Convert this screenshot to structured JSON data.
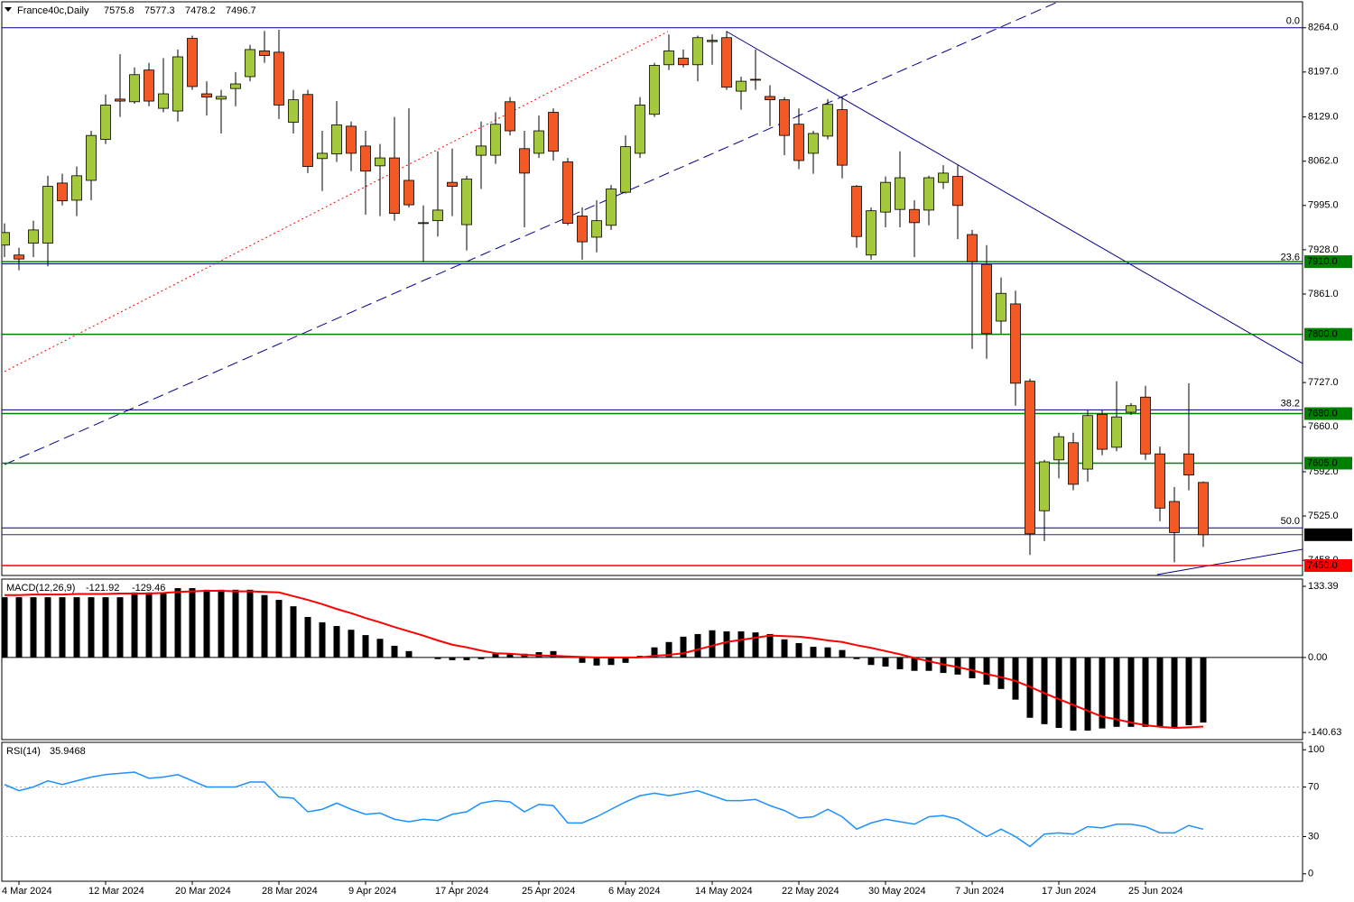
{
  "chart_data": [
    {
      "type": "candlestick",
      "title": "France40c,Daily",
      "categories": [
        null,
        "4 Mar 2024",
        null,
        null,
        null,
        null,
        null,
        "12 Mar 2024",
        null,
        null,
        null,
        null,
        null,
        "20 Mar 2024",
        null,
        null,
        null,
        null,
        null,
        "28 Mar 2024",
        null,
        null,
        null,
        null,
        null,
        "9 Apr 2024",
        null,
        null,
        null,
        null,
        null,
        "17 Apr 2024",
        null,
        null,
        null,
        null,
        null,
        "25 Apr 2024",
        null,
        null,
        null,
        null,
        null,
        "6 May 2024",
        null,
        null,
        null,
        null,
        null,
        "14 May 2024",
        null,
        null,
        null,
        null,
        null,
        "22 May 2024",
        null,
        null,
        null,
        null,
        null,
        "30 May 2024",
        null,
        null,
        null,
        null,
        null,
        "7 Jun 2024",
        null,
        null,
        null,
        null,
        null,
        "17 Jun 2024",
        null,
        null,
        null,
        null,
        null,
        "25 Jun 2024",
        null,
        null,
        null,
        null
      ],
      "open": [
        7935,
        7920,
        7938,
        7938,
        8029,
        8003,
        8033,
        8095,
        8156,
        8152,
        8200,
        8142,
        8138,
        8248,
        8164,
        8156,
        8172,
        8190,
        8229,
        8227,
        8121,
        8163,
        8066,
        8073,
        8115,
        8085,
        8055,
        8067,
        8033,
        7968,
        7972,
        8030,
        7966,
        8071,
        8071,
        8152,
        8081,
        8074,
        8136,
        8061,
        7979,
        7947,
        7965,
        8015,
        8074,
        8133,
        8208,
        8218,
        8208,
        8245,
        8249,
        8168,
        8186,
        8160,
        8155,
        8118,
        8074,
        8100,
        8140,
        8024,
        7920,
        7985,
        7989,
        7989,
        7988,
        8030,
        8039,
        7951,
        7906,
        7820,
        7846,
        7729,
        7533,
        7610,
        7636,
        7596,
        7679,
        7629,
        7682,
        7705,
        7619,
        7547,
        7619,
        7575.8
      ],
      "high": [
        7968,
        7931,
        7972,
        8040,
        8043,
        8054,
        8108,
        8163,
        8224,
        8204,
        8211,
        8218,
        8231,
        8252,
        8183,
        8170,
        8197,
        8238,
        8259,
        8261,
        8170,
        8170,
        8108,
        8153,
        8122,
        8108,
        8088,
        8129,
        8142,
        7995,
        8077,
        8081,
        8040,
        8122,
        8136,
        8159,
        8108,
        8131,
        8142,
        8067,
        7992,
        8003,
        8026,
        8101,
        8159,
        8211,
        8254,
        8231,
        8252,
        8254,
        8259,
        8190,
        8231,
        8177,
        8159,
        8142,
        8108,
        8156,
        8160,
        8026,
        7992,
        8039,
        8077,
        8003,
        8040,
        8056,
        8056,
        7958,
        7935,
        7886,
        7866,
        7733,
        7610,
        7651,
        7651,
        7685,
        7685,
        7729,
        7696,
        7722,
        7630,
        7569,
        7726,
        7577.3
      ],
      "low": [
        7917,
        7897,
        7917,
        7903,
        7995,
        7979,
        8003,
        8088,
        8129,
        8149,
        8145,
        8136,
        8122,
        8170,
        8131,
        8104,
        8145,
        8183,
        8211,
        8126,
        8104,
        8044,
        8017,
        8061,
        8047,
        7981,
        7979,
        7972,
        7992,
        7910,
        7948,
        7979,
        7927,
        8020,
        8058,
        8101,
        7962,
        8067,
        8063,
        7965,
        7913,
        7924,
        7958,
        8013,
        8067,
        8129,
        8200,
        8204,
        8183,
        8208,
        8170,
        8140,
        8170,
        8115,
        8071,
        8050,
        8043,
        8095,
        8036,
        7931,
        7913,
        7962,
        7962,
        7917,
        7965,
        8020,
        7944,
        7778,
        7763,
        7801,
        7692,
        7466,
        7487,
        7582,
        7564,
        7577,
        7617,
        7623,
        7678,
        7610,
        7517,
        7455,
        7564,
        7478.2
      ],
      "close": [
        7954,
        7914,
        7958,
        8024,
        8002,
        8040,
        8101,
        8147,
        8153,
        8193,
        8153,
        8164,
        8220,
        8175,
        8159,
        8160,
        8179,
        8231,
        8222,
        8147,
        8155,
        8054,
        8074,
        8117,
        8074,
        8047,
        8067,
        7983,
        7996,
        7969,
        7988,
        8024,
        8035,
        8085,
        8118,
        8108,
        8044,
        8108,
        8077,
        7968,
        7940,
        7972,
        8020,
        8084,
        8147,
        8207,
        8229,
        8208,
        8249,
        8243,
        8174,
        8183,
        8185,
        8155,
        8101,
        8063,
        8104,
        8148,
        8056,
        7948,
        7987,
        8030,
        8037,
        7969,
        8037,
        8044,
        7995,
        7910,
        7801,
        7862,
        7726,
        7498,
        7607,
        7645,
        7573,
        7677,
        7626,
        7675,
        7692,
        7619,
        7537,
        7500,
        7587,
        7496.7
      ],
      "up_color": "#a6c83c",
      "down_color": "#f15a24",
      "ylim": [
        7435,
        8306
      ],
      "yticks": [
        {
          "value": 8264,
          "label": "8264.0"
        },
        {
          "value": 8197,
          "label": "8197.0"
        },
        {
          "value": 8129,
          "label": "8129.0"
        },
        {
          "value": 8062,
          "label": "8062.0"
        },
        {
          "value": 7995,
          "label": "7995.0"
        },
        {
          "value": 7928,
          "label": "7928.0"
        },
        {
          "value": 7861,
          "label": "7861.0"
        },
        {
          "value": 7727,
          "label": "7727.0"
        },
        {
          "value": 7660,
          "label": "7660.0"
        },
        {
          "value": 7592,
          "label": "7592.0"
        },
        {
          "value": 7525,
          "label": "7525.0"
        },
        {
          "value": 7458,
          "label": "7458.0"
        }
      ],
      "levels": [
        {
          "value": 7910,
          "label": "7910.0",
          "color": "#008000"
        },
        {
          "value": 7800,
          "label": "7800.0",
          "color": "#008000"
        },
        {
          "value": 7680,
          "label": "7680.0",
          "color": "#008000"
        },
        {
          "value": 7605,
          "label": "7605.0",
          "color": "#008000"
        },
        {
          "value": 7450,
          "label": "7450.0",
          "color": "#ff0000"
        }
      ],
      "fibo": {
        "high": 8264,
        "low": 6750,
        "color": "#000080",
        "levels": [
          {
            "value": 0,
            "label": "0.0"
          },
          {
            "value": 23.6,
            "label": "23.6"
          },
          {
            "value": 38.2,
            "label": "38.2"
          },
          {
            "value": 50,
            "label": "50.0"
          }
        ]
      }
    },
    {
      "type": "bar",
      "title": "MACD(12,26,9)",
      "series": [
        {
          "color": "#000000",
          "values": [
            113,
            113,
            113,
            113,
            113,
            113,
            113,
            113,
            113,
            122,
            122,
            122,
            130,
            130,
            127,
            127,
            127,
            127,
            117,
            108,
            96,
            76,
            66,
            59,
            52,
            42,
            35,
            22,
            12,
            0,
            -3,
            -5,
            -5,
            -3,
            7,
            8,
            7,
            10,
            12,
            2,
            -10,
            -15,
            -14,
            -10,
            3,
            19,
            29,
            39,
            44,
            51,
            49,
            49,
            47,
            44,
            34,
            27,
            20,
            19,
            14,
            -3,
            -14,
            -17,
            -22,
            -25,
            -25,
            -29,
            -32,
            -39,
            -51,
            -59,
            -79,
            -113,
            -125,
            -132,
            -137,
            -137,
            -133,
            -130,
            -130,
            -130,
            -130,
            -132,
            -127,
            -121.92
          ]
        },
        {
          "type": "line",
          "color": "#ff0000",
          "values": [
            117,
            117,
            118,
            118,
            118,
            119,
            119,
            119,
            120,
            120,
            120,
            121,
            123,
            124,
            125,
            125,
            124,
            124,
            123,
            122,
            115,
            108,
            100,
            91,
            83,
            74,
            66,
            57,
            49,
            41,
            32,
            24,
            19,
            13,
            8,
            7,
            5,
            4,
            3,
            2,
            1,
            0,
            0,
            0,
            0,
            3,
            5,
            8,
            15,
            22,
            29,
            33,
            37,
            41,
            40,
            39,
            36,
            32,
            29,
            23,
            18,
            12,
            6,
            -1,
            -7,
            -13,
            -18,
            -24,
            -31,
            -37,
            -44,
            -55,
            -67,
            -78,
            -89,
            -100,
            -111,
            -116,
            -122,
            -127,
            -130,
            -132,
            -131,
            -129.46
          ]
        }
      ],
      "ylim": [
        -154,
        147
      ],
      "yticks": [
        133.39,
        {
          "value": 0,
          "label": "0.00"
        },
        -140.63
      ]
    },
    {
      "type": "line",
      "title": "RSI(14)",
      "color": "#1e90ff",
      "values": [
        72,
        67,
        70,
        75,
        72,
        75,
        78,
        80,
        81,
        82,
        77,
        78,
        80,
        75,
        70,
        70,
        70,
        74,
        74,
        62,
        61,
        50,
        52,
        57,
        52,
        48,
        49,
        44,
        42,
        44,
        43,
        48,
        50,
        57,
        59,
        58,
        50,
        56,
        55,
        41,
        41,
        46,
        52,
        58,
        63,
        65,
        63,
        65,
        67,
        63,
        59,
        59,
        60,
        55,
        51,
        45,
        46,
        52,
        46,
        36,
        41,
        44,
        42,
        40,
        46,
        47,
        44,
        37,
        30,
        36,
        30,
        22,
        32,
        33,
        32,
        38,
        37,
        40,
        40,
        38,
        33,
        33,
        39,
        35.9468
      ],
      "ylim": [
        -6,
        106
      ],
      "yticks": [
        100,
        70,
        30,
        0
      ],
      "grid": true
    }
  ]
}
